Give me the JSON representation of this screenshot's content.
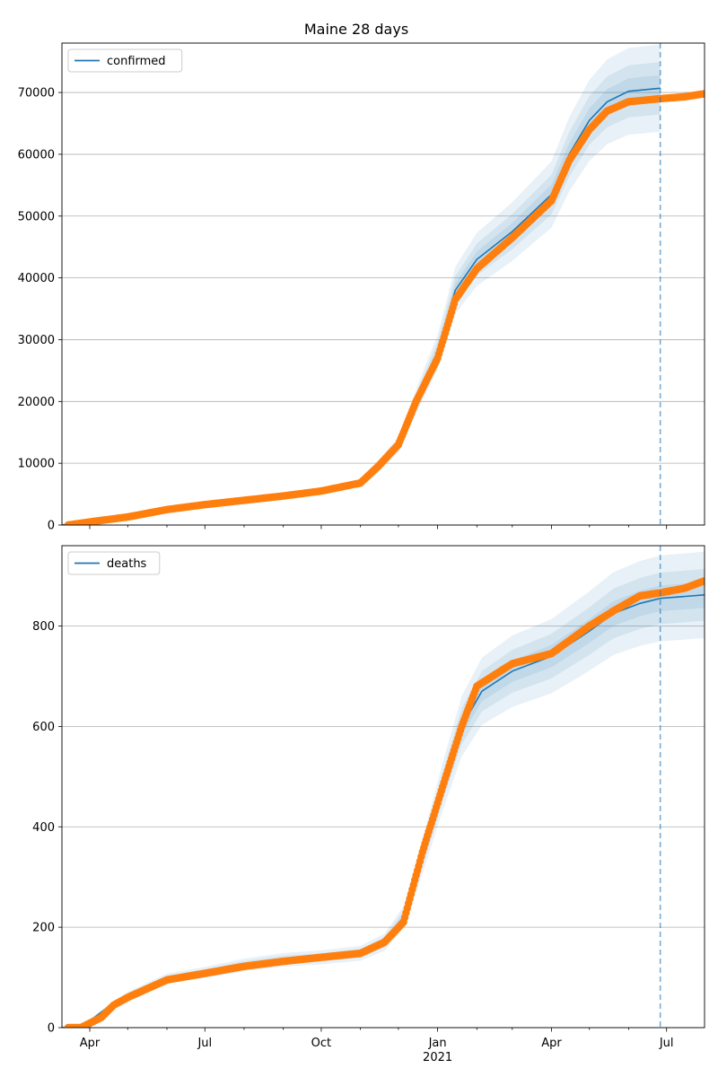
{
  "chart_data": {
    "type": "line",
    "title": "Maine 28 days",
    "x_start": "2020-03-10",
    "x_end": "2021-07-31",
    "forecast_date": "2021-06-26",
    "x_ticks": [
      {
        "date": "2020-04-01",
        "label": "Apr"
      },
      {
        "date": "2020-07-01",
        "label": "Jul"
      },
      {
        "date": "2020-10-01",
        "label": "Oct"
      },
      {
        "date": "2021-01-01",
        "label": "Jan"
      },
      {
        "date": "2021-04-01",
        "label": "Apr"
      },
      {
        "date": "2021-07-01",
        "label": "Jul"
      }
    ],
    "x_year_label": "2021",
    "colors": {
      "model": "#1f77b4",
      "observed": "#ff7f0e",
      "band": "#1f77b4",
      "grid": "#b0b0b0"
    },
    "panels": [
      {
        "name": "confirmed",
        "legend": "confirmed",
        "ylim": [
          0,
          78000
        ],
        "yticks": [
          0,
          10000,
          20000,
          30000,
          40000,
          50000,
          60000,
          70000
        ],
        "ytick_labels": [
          "0",
          "10000",
          "20000",
          "30000",
          "40000",
          "50000",
          "60000",
          "70000"
        ],
        "model": [
          [
            "2020-03-10",
            0
          ],
          [
            "2020-04-01",
            400
          ],
          [
            "2020-05-01",
            1300
          ],
          [
            "2020-06-01",
            2600
          ],
          [
            "2020-07-01",
            3400
          ],
          [
            "2020-08-01",
            4000
          ],
          [
            "2020-09-01",
            4700
          ],
          [
            "2020-10-01",
            5500
          ],
          [
            "2020-11-01",
            6800
          ],
          [
            "2020-11-15",
            9500
          ],
          [
            "2020-12-01",
            13000
          ],
          [
            "2020-12-15",
            20000
          ],
          [
            "2021-01-01",
            28000
          ],
          [
            "2021-01-15",
            38000
          ],
          [
            "2021-02-01",
            43000
          ],
          [
            "2021-03-01",
            47500
          ],
          [
            "2021-04-01",
            53500
          ],
          [
            "2021-04-15",
            60000
          ],
          [
            "2021-05-01",
            65500
          ],
          [
            "2021-05-15",
            68500
          ],
          [
            "2021-06-01",
            70200
          ],
          [
            "2021-06-26",
            70700
          ]
        ],
        "band_spread": [
          0.03,
          0.06,
          0.1
        ],
        "observed": [
          [
            "2020-03-15",
            0
          ],
          [
            "2020-04-01",
            500
          ],
          [
            "2020-05-01",
            1300
          ],
          [
            "2020-06-01",
            2500
          ],
          [
            "2020-07-01",
            3300
          ],
          [
            "2020-08-01",
            4000
          ],
          [
            "2020-09-01",
            4700
          ],
          [
            "2020-10-01",
            5500
          ],
          [
            "2020-11-01",
            6800
          ],
          [
            "2020-11-15",
            9500
          ],
          [
            "2020-12-01",
            13000
          ],
          [
            "2020-12-15",
            20000
          ],
          [
            "2021-01-01",
            27000
          ],
          [
            "2021-01-15",
            36500
          ],
          [
            "2021-02-01",
            41500
          ],
          [
            "2021-03-01",
            46500
          ],
          [
            "2021-04-01",
            52500
          ],
          [
            "2021-04-15",
            59000
          ],
          [
            "2021-05-01",
            64000
          ],
          [
            "2021-05-15",
            67000
          ],
          [
            "2021-06-01",
            68500
          ],
          [
            "2021-06-26",
            69000
          ],
          [
            "2021-07-15",
            69300
          ],
          [
            "2021-07-31",
            69800
          ]
        ]
      },
      {
        "name": "deaths",
        "legend": "deaths",
        "ylim": [
          0,
          960
        ],
        "yticks": [
          0,
          200,
          400,
          600,
          800
        ],
        "ytick_labels": [
          "0",
          "200",
          "400",
          "600",
          "800"
        ],
        "model": [
          [
            "2020-03-10",
            0
          ],
          [
            "2020-03-25",
            0
          ],
          [
            "2020-04-15",
            40
          ],
          [
            "2020-05-01",
            65
          ],
          [
            "2020-06-01",
            98
          ],
          [
            "2020-07-01",
            110
          ],
          [
            "2020-08-01",
            125
          ],
          [
            "2020-09-01",
            135
          ],
          [
            "2020-10-01",
            140
          ],
          [
            "2020-11-01",
            148
          ],
          [
            "2020-11-20",
            170
          ],
          [
            "2020-12-05",
            220
          ],
          [
            "2020-12-20",
            340
          ],
          [
            "2021-01-05",
            480
          ],
          [
            "2021-01-20",
            600
          ],
          [
            "2021-02-05",
            670
          ],
          [
            "2021-03-01",
            710
          ],
          [
            "2021-04-01",
            740
          ],
          [
            "2021-05-01",
            790
          ],
          [
            "2021-05-20",
            825
          ],
          [
            "2021-06-10",
            845
          ],
          [
            "2021-06-26",
            855
          ],
          [
            "2021-07-31",
            862
          ]
        ],
        "band_spread": [
          0.03,
          0.06,
          0.1
        ],
        "observed": [
          [
            "2020-03-15",
            0
          ],
          [
            "2020-03-25",
            0
          ],
          [
            "2020-04-10",
            20
          ],
          [
            "2020-04-20",
            45
          ],
          [
            "2020-05-01",
            60
          ],
          [
            "2020-06-01",
            95
          ],
          [
            "2020-07-01",
            108
          ],
          [
            "2020-08-01",
            122
          ],
          [
            "2020-09-01",
            132
          ],
          [
            "2020-10-01",
            140
          ],
          [
            "2020-11-01",
            148
          ],
          [
            "2020-11-20",
            170
          ],
          [
            "2020-12-05",
            210
          ],
          [
            "2020-12-20",
            350
          ],
          [
            "2021-01-05",
            480
          ],
          [
            "2021-01-20",
            600
          ],
          [
            "2021-02-01",
            680
          ],
          [
            "2021-03-01",
            725
          ],
          [
            "2021-04-01",
            745
          ],
          [
            "2021-05-01",
            800
          ],
          [
            "2021-05-20",
            830
          ],
          [
            "2021-06-10",
            860
          ],
          [
            "2021-06-26",
            866
          ],
          [
            "2021-07-15",
            875
          ],
          [
            "2021-07-31",
            890
          ]
        ]
      }
    ]
  }
}
